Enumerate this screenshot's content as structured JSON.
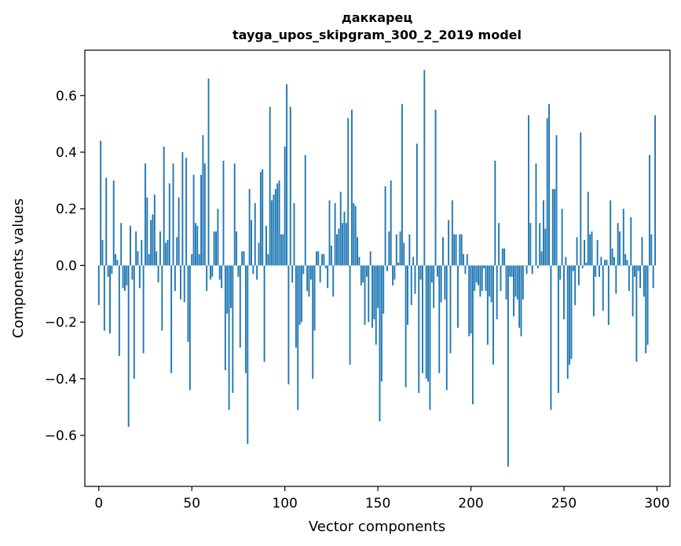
{
  "chart_data": {
    "type": "bar",
    "title_line1": "даккарец",
    "title_line2": "tayga_upos_skipgram_300_2_2019 model",
    "xlabel": "Vector components",
    "ylabel": "Components values",
    "xlim": [
      -7.5,
      307
    ],
    "ylim": [
      -0.78,
      0.76
    ],
    "xticks": [
      0,
      50,
      100,
      150,
      200,
      250,
      300
    ],
    "xtick_labels": [
      "0",
      "50",
      "100",
      "150",
      "200",
      "250",
      "300"
    ],
    "yticks": [
      0.6,
      0.4,
      0.2,
      0.0,
      -0.2,
      -0.4,
      -0.6
    ],
    "ytick_labels": [
      "0.6",
      "0.4",
      "0.2",
      "0.0",
      "−0.2",
      "−0.4",
      "−0.6"
    ],
    "bar_color": "#1f77b4",
    "values": [
      -0.14,
      0.44,
      0.09,
      -0.23,
      0.31,
      -0.04,
      -0.24,
      -0.03,
      0.3,
      0.04,
      0.02,
      -0.32,
      0.15,
      -0.08,
      -0.09,
      -0.07,
      -0.57,
      0.14,
      -0.05,
      -0.4,
      0.12,
      0.05,
      -0.08,
      0.09,
      -0.31,
      0.36,
      0.24,
      0.04,
      0.16,
      0.18,
      0.25,
      0.05,
      -0.06,
      0.12,
      -0.23,
      0.42,
      0.08,
      0.09,
      0.29,
      -0.38,
      0.36,
      -0.09,
      0.1,
      0.24,
      -0.12,
      0.4,
      -0.13,
      0.38,
      -0.27,
      -0.44,
      0.04,
      0.32,
      0.15,
      0.14,
      0.04,
      0.32,
      0.46,
      0.36,
      -0.09,
      0.66,
      -0.05,
      -0.04,
      0.12,
      0.12,
      0.2,
      -0.05,
      -0.08,
      0.37,
      -0.37,
      -0.17,
      -0.51,
      -0.15,
      -0.45,
      0.36,
      0.12,
      -0.04,
      -0.29,
      0.05,
      0.05,
      -0.38,
      -0.63,
      0.27,
      0.16,
      -0.03,
      0.22,
      -0.05,
      0.08,
      0.33,
      0.34,
      -0.34,
      0.14,
      0.04,
      0.56,
      0.23,
      0.25,
      0.27,
      0.29,
      0.3,
      0.11,
      0.11,
      0.42,
      0.64,
      -0.42,
      0.56,
      -0.06,
      0.22,
      -0.29,
      -0.51,
      -0.21,
      -0.2,
      -0.03,
      0.39,
      -0.09,
      -0.11,
      -0.05,
      -0.4,
      -0.23,
      0.05,
      0.05,
      -0.06,
      0.04,
      0.04,
      -0.01,
      -0.08,
      0.23,
      0.07,
      -0.11,
      0.22,
      0.11,
      0.13,
      0.26,
      0.15,
      0.19,
      0.15,
      0.52,
      -0.35,
      0.55,
      0.22,
      0.21,
      0.1,
      0.03,
      -0.07,
      -0.06,
      -0.21,
      -0.04,
      -0.2,
      0.05,
      -0.22,
      -0.19,
      -0.28,
      -0.15,
      -0.55,
      -0.41,
      -0.17,
      0.28,
      -0.02,
      0.12,
      0.3,
      -0.07,
      -0.05,
      0.11,
      0.01,
      0.12,
      0.57,
      0.08,
      -0.43,
      -0.21,
      0.11,
      -0.14,
      0.03,
      -0.1,
      0.43,
      -0.45,
      -0.05,
      -0.38,
      0.69,
      -0.4,
      -0.41,
      -0.51,
      -0.06,
      -0.15,
      0.55,
      -0.04,
      -0.38,
      -0.13,
      0.1,
      -0.12,
      -0.44,
      0.16,
      -0.31,
      0.23,
      0.11,
      0.11,
      -0.22,
      0.11,
      0.11,
      0.04,
      -0.03,
      0.04,
      -0.25,
      -0.24,
      -0.49,
      -0.09,
      -0.06,
      -0.07,
      -0.11,
      -0.09,
      -0.01,
      -0.09,
      -0.28,
      -0.11,
      -0.13,
      -0.35,
      0.37,
      -0.19,
      0.15,
      -0.09,
      0.06,
      0.06,
      -0.12,
      -0.71,
      -0.04,
      -0.04,
      -0.18,
      -0.11,
      -0.12,
      -0.22,
      -0.25,
      -0.12,
      0.0,
      -0.03,
      0.53,
      0.15,
      -0.03,
      0.0,
      0.36,
      -0.01,
      0.15,
      0.05,
      0.23,
      0.13,
      0.52,
      0.57,
      -0.51,
      0.27,
      0.27,
      0.46,
      -0.45,
      -0.05,
      0.2,
      -0.19,
      0.03,
      -0.4,
      -0.35,
      -0.33,
      -0.02,
      -0.14,
      0.1,
      -0.07,
      0.47,
      -0.01,
      0.09,
      0.01,
      0.26,
      0.11,
      0.12,
      -0.18,
      -0.04,
      0.09,
      -0.04,
      0.03,
      -0.16,
      0.02,
      0.02,
      -0.21,
      0.23,
      0.06,
      0.03,
      -0.1,
      0.15,
      0.12,
      0.0,
      0.2,
      0.04,
      0.02,
      -0.09,
      0.17,
      -0.18,
      -0.04,
      -0.34,
      -0.02,
      -0.08,
      0.1,
      -0.11,
      -0.31,
      -0.28,
      0.39,
      0.11,
      -0.08,
      0.53
    ]
  }
}
